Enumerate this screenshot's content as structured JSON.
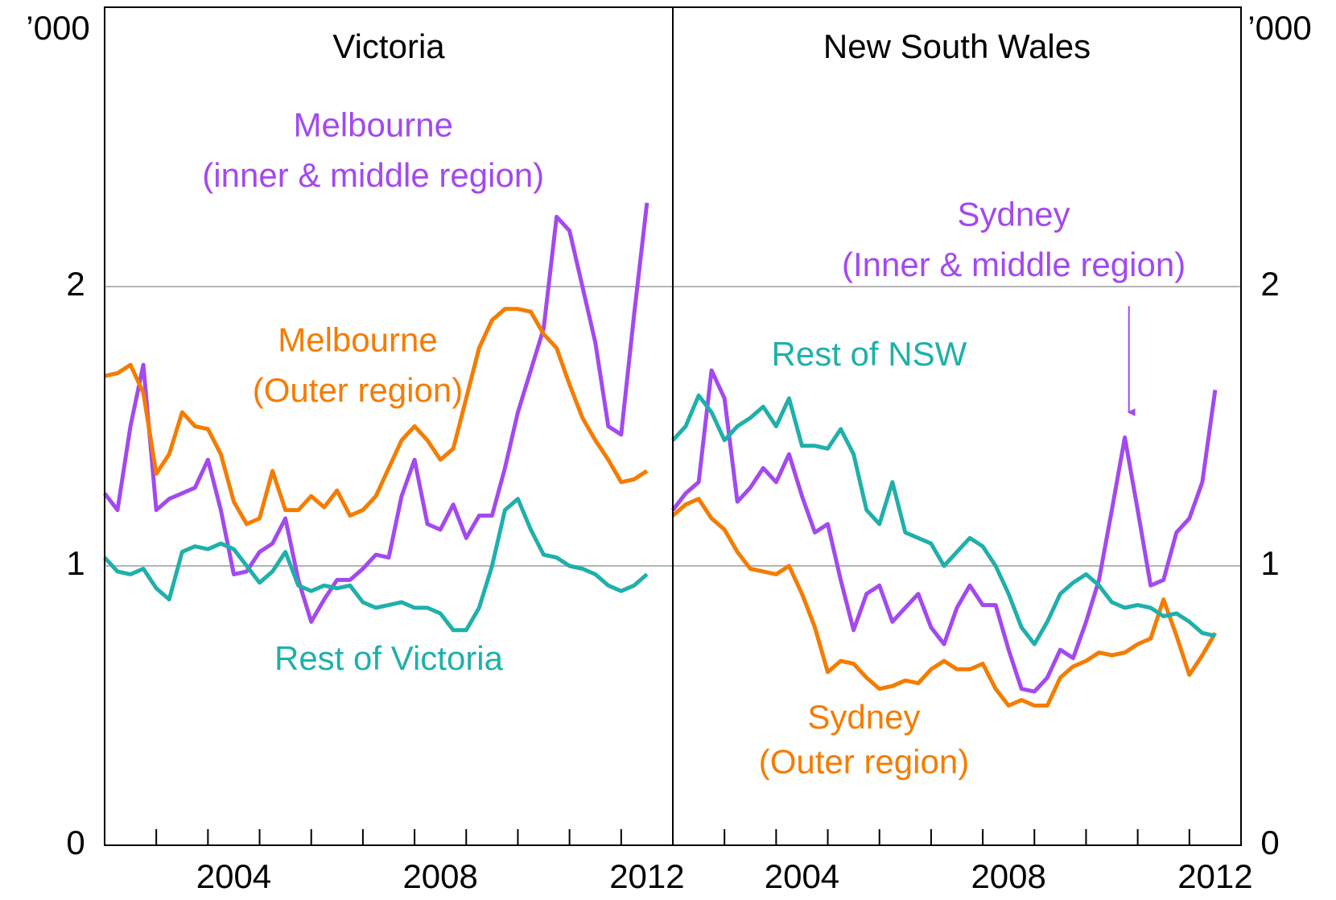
{
  "chart_data": [
    {
      "type": "line",
      "title": "Victoria",
      "unit": "’000",
      "yaxis_side": "left",
      "grid": true,
      "x": [
        2001.5,
        2001.75,
        2002,
        2002.25,
        2002.5,
        2002.75,
        2003,
        2003.25,
        2003.5,
        2003.75,
        2004,
        2004.25,
        2004.5,
        2004.75,
        2005,
        2005.25,
        2005.5,
        2005.75,
        2006,
        2006.25,
        2006.5,
        2006.75,
        2007,
        2007.25,
        2007.5,
        2007.75,
        2008,
        2008.25,
        2008.5,
        2008.75,
        2009,
        2009.25,
        2009.5,
        2009.75,
        2010,
        2010.25,
        2010.5,
        2010.75,
        2011,
        2011.25,
        2011.5,
        2011.75,
        2012
      ],
      "xlim": [
        2001.5,
        2012.5
      ],
      "xticks": [
        2004,
        2008,
        2012
      ],
      "xminorticks": [
        2002.5,
        2003.5,
        2004.5,
        2005.5,
        2006.5,
        2007.5,
        2008.5,
        2009.5,
        2010.5,
        2011.5
      ],
      "ylim": [
        0,
        3
      ],
      "yticks": [
        0,
        1,
        2
      ],
      "series": [
        {
          "name": "Melbourne",
          "note": "(inner & middle region)",
          "color": "#a349f0",
          "values": [
            1.26,
            1.2,
            1.5,
            1.72,
            1.2,
            1.24,
            1.26,
            1.28,
            1.38,
            1.2,
            0.97,
            0.98,
            1.05,
            1.08,
            1.17,
            0.95,
            0.8,
            0.88,
            0.95,
            0.95,
            0.99,
            1.04,
            1.03,
            1.25,
            1.38,
            1.15,
            1.13,
            1.22,
            1.1,
            1.18,
            1.18,
            1.35,
            1.55,
            1.7,
            1.85,
            2.25,
            2.2,
            2.0,
            1.8,
            1.5,
            1.47,
            1.9,
            2.3
          ]
        },
        {
          "name": "Melbourne",
          "note": "(Outer region)",
          "color": "#f57c00",
          "values": [
            1.68,
            1.69,
            1.72,
            1.62,
            1.33,
            1.4,
            1.55,
            1.5,
            1.49,
            1.4,
            1.23,
            1.15,
            1.17,
            1.34,
            1.2,
            1.2,
            1.25,
            1.21,
            1.27,
            1.18,
            1.2,
            1.25,
            1.35,
            1.45,
            1.5,
            1.45,
            1.38,
            1.42,
            1.6,
            1.78,
            1.88,
            1.92,
            1.92,
            1.91,
            1.83,
            1.78,
            1.65,
            1.53,
            1.45,
            1.38,
            1.3,
            1.31,
            1.34
          ]
        },
        {
          "name": "Rest of Victoria",
          "color": "#1fb0aa",
          "values": [
            1.03,
            0.98,
            0.97,
            0.99,
            0.92,
            0.88,
            1.05,
            1.07,
            1.06,
            1.08,
            1.06,
            1.0,
            0.94,
            0.98,
            1.05,
            0.93,
            0.91,
            0.93,
            0.92,
            0.93,
            0.87,
            0.85,
            0.86,
            0.87,
            0.85,
            0.85,
            0.83,
            0.77,
            0.77,
            0.85,
            1.0,
            1.2,
            1.24,
            1.13,
            1.04,
            1.03,
            1.0,
            0.99,
            0.97,
            0.93,
            0.91,
            0.93,
            0.97
          ]
        }
      ]
    },
    {
      "type": "line",
      "title": "New South Wales",
      "unit": "’000",
      "yaxis_side": "right",
      "grid": true,
      "x": [
        2001.5,
        2001.75,
        2002,
        2002.25,
        2002.5,
        2002.75,
        2003,
        2003.25,
        2003.5,
        2003.75,
        2004,
        2004.25,
        2004.5,
        2004.75,
        2005,
        2005.25,
        2005.5,
        2005.75,
        2006,
        2006.25,
        2006.5,
        2006.75,
        2007,
        2007.25,
        2007.5,
        2007.75,
        2008,
        2008.25,
        2008.5,
        2008.75,
        2009,
        2009.25,
        2009.5,
        2009.75,
        2010,
        2010.25,
        2010.5,
        2010.75,
        2011,
        2011.25,
        2011.5,
        2011.75,
        2012
      ],
      "xlim": [
        2001.5,
        2012.5
      ],
      "xticks": [
        2004,
        2008,
        2012
      ],
      "xminorticks": [
        2002.5,
        2003.5,
        2004.5,
        2005.5,
        2006.5,
        2007.5,
        2008.5,
        2009.5,
        2010.5,
        2011.5
      ],
      "ylim": [
        0,
        3
      ],
      "yticks": [
        0,
        1,
        2
      ],
      "series": [
        {
          "name": "Sydney",
          "note": "(Inner & middle region)",
          "color": "#a349f0",
          "values": [
            1.2,
            1.26,
            1.3,
            1.7,
            1.6,
            1.23,
            1.28,
            1.35,
            1.3,
            1.4,
            1.25,
            1.12,
            1.15,
            0.95,
            0.77,
            0.9,
            0.93,
            0.8,
            0.85,
            0.9,
            0.78,
            0.72,
            0.85,
            0.93,
            0.86,
            0.86,
            0.7,
            0.56,
            0.55,
            0.6,
            0.7,
            0.67,
            0.8,
            0.95,
            1.2,
            1.46,
            1.2,
            0.93,
            0.95,
            1.12,
            1.17,
            1.3,
            1.63
          ]
        },
        {
          "name": "Sydney",
          "note": "(Outer region)",
          "color": "#f57c00",
          "values": [
            1.18,
            1.22,
            1.24,
            1.17,
            1.13,
            1.05,
            0.99,
            0.98,
            0.97,
            1.0,
            0.9,
            0.78,
            0.62,
            0.66,
            0.65,
            0.6,
            0.56,
            0.57,
            0.59,
            0.58,
            0.63,
            0.66,
            0.63,
            0.63,
            0.65,
            0.56,
            0.5,
            0.52,
            0.5,
            0.5,
            0.6,
            0.64,
            0.66,
            0.69,
            0.68,
            0.69,
            0.72,
            0.74,
            0.88,
            0.75,
            0.61,
            0.68,
            0.76
          ]
        },
        {
          "name": "Rest of NSW",
          "color": "#1fb0aa",
          "values": [
            1.45,
            1.5,
            1.61,
            1.55,
            1.45,
            1.5,
            1.53,
            1.57,
            1.5,
            1.6,
            1.43,
            1.43,
            1.42,
            1.49,
            1.4,
            1.2,
            1.15,
            1.3,
            1.12,
            1.1,
            1.08,
            1.0,
            1.05,
            1.1,
            1.07,
            1.0,
            0.9,
            0.78,
            0.72,
            0.8,
            0.9,
            0.94,
            0.97,
            0.93,
            0.87,
            0.85,
            0.86,
            0.85,
            0.82,
            0.83,
            0.8,
            0.76,
            0.75
          ]
        }
      ]
    }
  ]
}
